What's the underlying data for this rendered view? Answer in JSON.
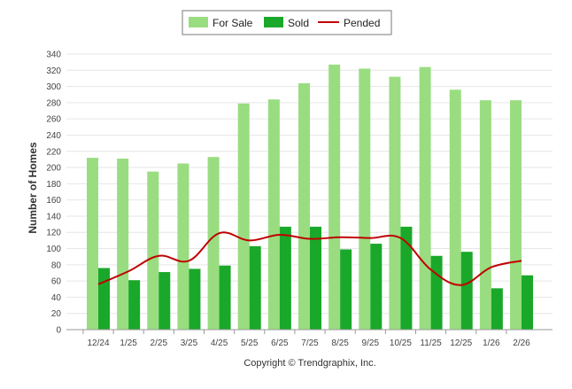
{
  "chart_data": {
    "type": "bar",
    "title": "",
    "xlabel": "",
    "ylabel": "Number of Homes",
    "ylim": [
      0,
      340
    ],
    "ytick_step": 20,
    "grid": true,
    "legend_position": "top",
    "categories": [
      "12/24",
      "1/25",
      "2/25",
      "3/25",
      "4/25",
      "5/25",
      "6/25",
      "7/25",
      "8/25",
      "9/25",
      "10/25",
      "11/25",
      "12/25",
      "1/26",
      "2/26"
    ],
    "series": [
      {
        "name": "For Sale",
        "kind": "bar",
        "color": "#99dd80",
        "values": [
          212,
          211,
          195,
          205,
          213,
          279,
          284,
          304,
          327,
          322,
          312,
          324,
          296,
          283,
          283
        ]
      },
      {
        "name": "Sold",
        "kind": "bar",
        "color": "#1aa82a",
        "values": [
          76,
          61,
          71,
          75,
          79,
          103,
          127,
          127,
          99,
          106,
          127,
          91,
          96,
          51,
          67
        ]
      },
      {
        "name": "Pended",
        "kind": "line",
        "color": "#c00000",
        "values": [
          56,
          72,
          91,
          85,
          119,
          110,
          117,
          112,
          114,
          113,
          113,
          74,
          55,
          77,
          85
        ]
      }
    ],
    "footer": "Copyright © Trendgraphix, Inc."
  }
}
